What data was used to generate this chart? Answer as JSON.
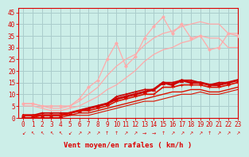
{
  "title": "",
  "xlabel": "Vent moyen/en rafales ( km/h )",
  "ylabel": "",
  "bg_color": "#cceee8",
  "grid_color": "#aacccc",
  "xlim": [
    -0.5,
    23
  ],
  "ylim": [
    0,
    47
  ],
  "yticks": [
    0,
    5,
    10,
    15,
    20,
    25,
    30,
    35,
    40,
    45
  ],
  "xticks": [
    0,
    1,
    2,
    3,
    4,
    5,
    6,
    7,
    8,
    9,
    10,
    11,
    12,
    13,
    14,
    15,
    16,
    17,
    18,
    19,
    20,
    21,
    22,
    23
  ],
  "series": [
    {
      "note": "light pink jagged line with diamond markers - peaks high",
      "x": [
        0,
        1,
        2,
        3,
        4,
        5,
        6,
        7,
        8,
        9,
        10,
        11,
        12,
        13,
        14,
        15,
        16,
        17,
        18,
        19,
        20,
        21,
        22,
        23
      ],
      "y": [
        6,
        6,
        5,
        5,
        5,
        5,
        8,
        13,
        16,
        25,
        32,
        22,
        26,
        34,
        39,
        43,
        36,
        40,
        34,
        35,
        29,
        30,
        36,
        35
      ],
      "color": "#ffaaaa",
      "lw": 0.9,
      "marker": "D",
      "ms": 2.0
    },
    {
      "note": "light pink smooth diagonal - upper bound",
      "x": [
        0,
        1,
        2,
        3,
        4,
        5,
        6,
        7,
        8,
        9,
        10,
        11,
        12,
        13,
        14,
        15,
        16,
        17,
        18,
        19,
        20,
        21,
        22,
        23
      ],
      "y": [
        6,
        6,
        5,
        4,
        4,
        5,
        7,
        10,
        13,
        18,
        22,
        25,
        27,
        31,
        34,
        36,
        37,
        39,
        40,
        41,
        40,
        40,
        36,
        36
      ],
      "color": "#ffaaaa",
      "lw": 0.9,
      "marker": null,
      "ms": 0
    },
    {
      "note": "light pink lower diagonal - lower bound",
      "x": [
        0,
        1,
        2,
        3,
        4,
        5,
        6,
        7,
        8,
        9,
        10,
        11,
        12,
        13,
        14,
        15,
        16,
        17,
        18,
        19,
        20,
        21,
        22,
        23
      ],
      "y": [
        5,
        5,
        4,
        3,
        3,
        4,
        5,
        7,
        9,
        12,
        14,
        17,
        20,
        24,
        27,
        29,
        30,
        32,
        33,
        35,
        34,
        34,
        30,
        30
      ],
      "color": "#ffaaaa",
      "lw": 0.9,
      "marker": null,
      "ms": 0
    },
    {
      "note": "dark red - main thick line with triangles",
      "x": [
        0,
        1,
        2,
        3,
        4,
        5,
        6,
        7,
        8,
        9,
        10,
        11,
        12,
        13,
        14,
        15,
        16,
        17,
        18,
        19,
        20,
        21,
        22,
        23
      ],
      "y": [
        1,
        1,
        1,
        1,
        1,
        2,
        3,
        4,
        5,
        6,
        8,
        9,
        10,
        11,
        12,
        15,
        14,
        16,
        15,
        15,
        14,
        14,
        15,
        16
      ],
      "color": "#cc0000",
      "lw": 2.0,
      "marker": "^",
      "ms": 3.0
    },
    {
      "note": "dark red upper line",
      "x": [
        0,
        1,
        2,
        3,
        4,
        5,
        6,
        7,
        8,
        9,
        10,
        11,
        12,
        13,
        14,
        15,
        16,
        17,
        18,
        19,
        20,
        21,
        22,
        23
      ],
      "y": [
        1,
        1,
        2,
        2,
        2,
        2,
        3,
        4,
        5,
        6,
        9,
        10,
        11,
        12,
        12,
        15,
        15,
        16,
        16,
        15,
        14,
        15,
        15,
        16
      ],
      "color": "#cc0000",
      "lw": 1.2,
      "marker": "+",
      "ms": 3.0
    },
    {
      "note": "dark red - medium line with crosses",
      "x": [
        0,
        1,
        2,
        3,
        4,
        5,
        6,
        7,
        8,
        9,
        10,
        11,
        12,
        13,
        14,
        15,
        16,
        17,
        18,
        19,
        20,
        21,
        22,
        23
      ],
      "y": [
        1,
        1,
        1,
        1,
        1,
        2,
        3,
        3,
        4,
        5,
        7,
        8,
        9,
        10,
        10,
        13,
        13,
        14,
        14,
        14,
        13,
        13,
        14,
        15
      ],
      "color": "#dd1100",
      "lw": 1.2,
      "marker": "+",
      "ms": 2.5
    },
    {
      "note": "dark red lower diagonal - straight",
      "x": [
        0,
        1,
        2,
        3,
        4,
        5,
        6,
        7,
        8,
        9,
        10,
        11,
        12,
        13,
        14,
        15,
        16,
        17,
        18,
        19,
        20,
        21,
        22,
        23
      ],
      "y": [
        0,
        0,
        1,
        1,
        1,
        1,
        2,
        2,
        3,
        4,
        5,
        6,
        7,
        8,
        9,
        10,
        11,
        11,
        12,
        12,
        11,
        11,
        12,
        13
      ],
      "color": "#dd1100",
      "lw": 1.0,
      "marker": null,
      "ms": 0
    },
    {
      "note": "bottom red line - near straight diagonal",
      "x": [
        0,
        1,
        2,
        3,
        4,
        5,
        6,
        7,
        8,
        9,
        10,
        11,
        12,
        13,
        14,
        15,
        16,
        17,
        18,
        19,
        20,
        21,
        22,
        23
      ],
      "y": [
        0,
        0,
        0,
        0,
        0,
        1,
        1,
        1,
        2,
        3,
        4,
        5,
        6,
        7,
        7,
        8,
        9,
        10,
        10,
        11,
        10,
        10,
        11,
        12
      ],
      "color": "#dd1100",
      "lw": 0.8,
      "marker": null,
      "ms": 0
    }
  ],
  "arrow_chars": [
    "↙",
    "↖",
    "↖",
    "↖",
    "↖",
    "↙",
    "↗",
    "↗",
    "↗",
    "↑",
    "↑",
    "↗",
    "↗",
    "→",
    "→",
    "↑",
    "↗",
    "↗",
    "↗",
    "↗",
    "↑",
    "↗",
    "↗",
    "↗"
  ],
  "arrow_color": "#dd0000",
  "xlabel_color": "#dd0000",
  "tick_color": "#dd0000",
  "axis_color": "#dd0000",
  "xlabel_fontsize": 6.5,
  "tick_fontsize": 5.5
}
